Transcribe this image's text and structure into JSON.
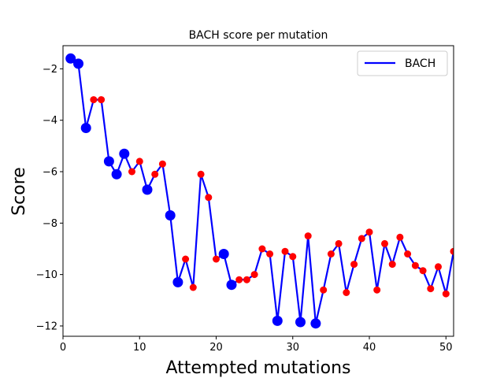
{
  "chart_data": {
    "type": "line",
    "title": "BACH score per mutation",
    "xlabel": "Attempted mutations",
    "ylabel": "Score",
    "xlim": [
      0,
      51
    ],
    "ylim": [
      -12.4,
      -1.1
    ],
    "xticks": [
      0,
      10,
      20,
      30,
      40,
      50
    ],
    "yticks": [
      -2,
      -4,
      -6,
      -8,
      -10,
      -12
    ],
    "xtick_labels": [
      "0",
      "10",
      "20",
      "30",
      "40",
      "50"
    ],
    "ytick_labels": [
      "−2",
      "−4",
      "−6",
      "−8",
      "−10",
      "−12"
    ],
    "legend": {
      "placement": "top-right",
      "entries": [
        "BACH"
      ]
    },
    "grid": false,
    "line_color": "#0000ff",
    "accepted_color": "#0000ff",
    "rejected_color": "#ff0000",
    "series": [
      {
        "name": "BACH",
        "x": [
          1,
          2,
          3,
          4,
          5,
          6,
          7,
          8,
          9,
          10,
          11,
          12,
          13,
          14,
          15,
          16,
          17,
          18,
          19,
          20,
          21,
          22,
          23,
          24,
          25,
          26,
          27,
          28,
          29,
          30,
          31,
          32,
          33,
          34,
          35,
          36,
          37,
          38,
          39,
          40,
          41,
          42,
          43,
          44,
          45,
          46,
          47,
          48,
          49,
          50,
          51
        ],
        "y": [
          -1.6,
          -1.8,
          -4.3,
          -3.2,
          -3.2,
          -5.6,
          -6.1,
          -5.3,
          -6.0,
          -5.6,
          -6.7,
          -6.1,
          -5.7,
          -7.7,
          -10.3,
          -9.4,
          -10.5,
          -6.1,
          -7.0,
          -9.4,
          -9.2,
          -10.4,
          -10.2,
          -10.2,
          -10.0,
          -9.0,
          -9.2,
          -11.8,
          -9.1,
          -9.3,
          -11.85,
          -8.5,
          -11.9,
          -10.6,
          -9.2,
          -8.8,
          -10.7,
          -9.6,
          -8.6,
          -8.35,
          -10.6,
          -8.8,
          -9.6,
          -8.55,
          -9.2,
          -9.65,
          -9.85,
          -10.55,
          -9.7,
          -10.75,
          -9.1
        ],
        "accepted": [
          true,
          true,
          true,
          false,
          false,
          true,
          true,
          true,
          false,
          false,
          true,
          false,
          false,
          true,
          true,
          false,
          false,
          false,
          false,
          false,
          true,
          true,
          false,
          false,
          false,
          false,
          false,
          true,
          false,
          false,
          true,
          false,
          true,
          false,
          false,
          false,
          false,
          false,
          false,
          false,
          false,
          false,
          false,
          false,
          false,
          false,
          false,
          false,
          false,
          false,
          false
        ]
      }
    ]
  }
}
